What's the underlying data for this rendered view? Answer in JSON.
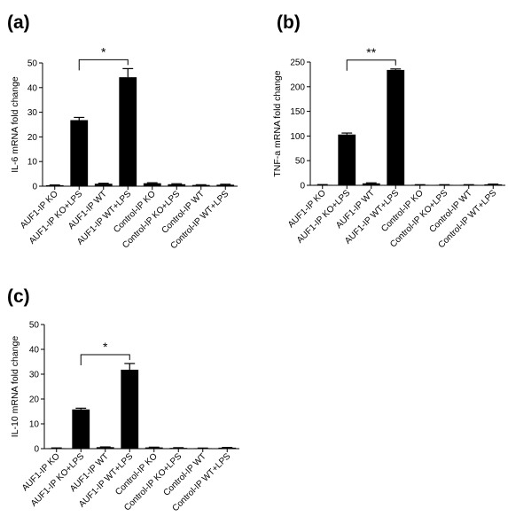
{
  "chart_data": [
    {
      "type": "bar",
      "panel_label": "(a)",
      "ylabel": "IL-6 mRNA fold change",
      "ylim": [
        0,
        50
      ],
      "yticks": [
        0,
        10,
        20,
        30,
        40,
        50
      ],
      "categories": [
        "AUF1-IP KO",
        "AUF1-IP KO+LPS",
        "AUF1-IP WT",
        "AUF1-IP WT+LPS",
        "Control-IP KO",
        "Control-IP KO+LPS",
        "Control-IP WT",
        "Control-IP WT+LPS"
      ],
      "values": [
        0.4,
        26.8,
        1.0,
        44.2,
        1.2,
        0.8,
        0.5,
        0.6
      ],
      "errors": [
        0.1,
        1.1,
        0.2,
        3.5,
        0.2,
        0.2,
        0.1,
        0.2
      ],
      "significance": {
        "from": 1,
        "to": 3,
        "label": "*"
      },
      "color": "#000000",
      "grid": false
    },
    {
      "type": "bar",
      "panel_label": "(b)",
      "ylabel": "TNF-a mRNA fold change",
      "ylim": [
        0,
        250
      ],
      "yticks": [
        0,
        50,
        100,
        150,
        200,
        250
      ],
      "categories": [
        "AUF1-IP KO",
        "AUF1-IP KO+LPS",
        "AUF1-IP WT",
        "AUF1-IP WT+LPS",
        "Control-IP KO",
        "Control-IP KO+LPS",
        "Control-IP WT",
        "Control-IP WT+LPS"
      ],
      "values": [
        1,
        103,
        4,
        234,
        1,
        1,
        1,
        2
      ],
      "errors": [
        0.5,
        3,
        1,
        2,
        0.3,
        0.3,
        0.3,
        0.5
      ],
      "significance": {
        "from": 1,
        "to": 3,
        "label": "**"
      },
      "color": "#000000",
      "grid": false
    },
    {
      "type": "bar",
      "panel_label": "(c)",
      "ylabel": "IL-10 mRNA fold change",
      "ylim": [
        0,
        50
      ],
      "yticks": [
        0,
        10,
        20,
        30,
        40,
        50
      ],
      "categories": [
        "AUF1-IP KO",
        "AUF1-IP KO+LPS",
        "AUF1-IP WT",
        "AUF1-IP WT+LPS",
        "Control-IP KO",
        "Control-IP KO+LPS",
        "Control-IP WT",
        "Control-IP WT+LPS"
      ],
      "values": [
        0.2,
        15.8,
        0.6,
        31.8,
        0.5,
        0.3,
        0.2,
        0.4
      ],
      "errors": [
        0.1,
        0.5,
        0.1,
        2.5,
        0.1,
        0.1,
        0.05,
        0.1
      ],
      "significance": {
        "from": 1,
        "to": 3,
        "label": "*"
      },
      "color": "#000000",
      "grid": false
    }
  ]
}
